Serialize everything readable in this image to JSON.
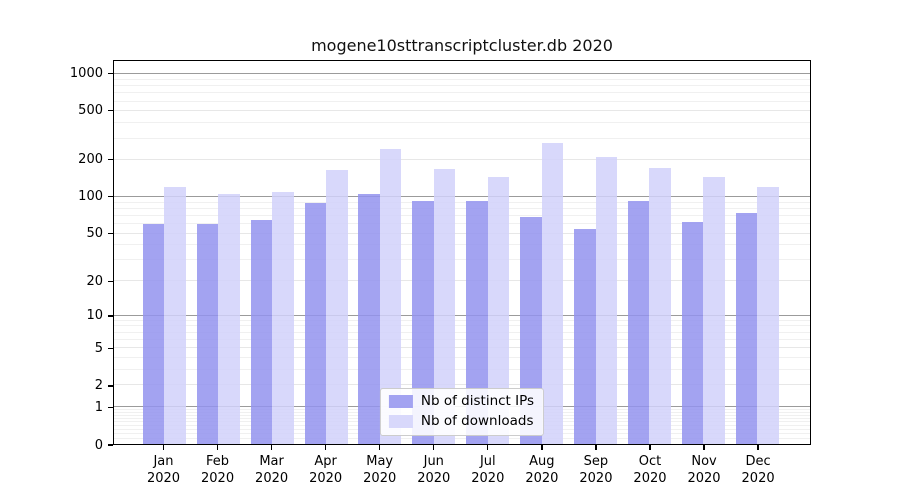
{
  "chart_data": {
    "type": "bar",
    "title": "mogene10sttranscriptcluster.db 2020",
    "categories": [
      "Jan",
      "Feb",
      "Mar",
      "Apr",
      "May",
      "Jun",
      "Jul",
      "Aug",
      "Sep",
      "Oct",
      "Nov",
      "Dec"
    ],
    "category_year": "2020",
    "series": [
      {
        "name": "Nb of distinct IPs",
        "color": "rgba(147,147,238,0.85)",
        "values": [
          60,
          60,
          65,
          90,
          105,
          93,
          93,
          68,
          55,
          92,
          62,
          74
        ]
      },
      {
        "name": "Nb of downloads",
        "color": "rgba(209,209,250,0.85)",
        "values": [
          120,
          105,
          110,
          166,
          248,
          168,
          145,
          277,
          211,
          173,
          145,
          121
        ]
      }
    ],
    "yscale": "log1p",
    "ylim": [
      0,
      1280
    ],
    "yticks": [
      0,
      1,
      2,
      5,
      10,
      20,
      50,
      100,
      200,
      500,
      1000
    ],
    "major_decades": [
      1,
      10,
      100,
      1000
    ],
    "minor_yticks": [
      0.1,
      0.2,
      0.3,
      0.4,
      0.5,
      0.6,
      0.7,
      0.8,
      0.9,
      3,
      4,
      6,
      7,
      8,
      9,
      30,
      40,
      60,
      70,
      80,
      90,
      300,
      400,
      600,
      700,
      800,
      900
    ],
    "xlabel": "",
    "ylabel": "",
    "grid": true,
    "legend_position": "lower center"
  }
}
